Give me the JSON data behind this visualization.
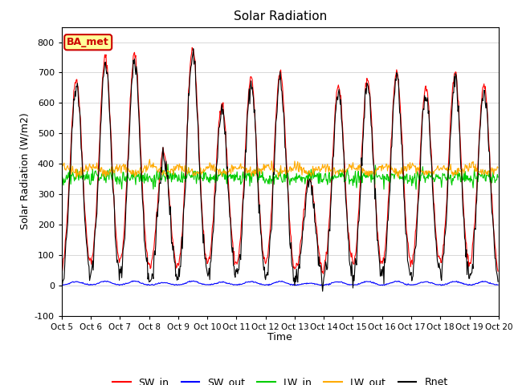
{
  "title": "Solar Radiation",
  "ylabel": "Solar Radiation (W/m2)",
  "xlabel": "Time",
  "ylim": [
    -100,
    850
  ],
  "yticks": [
    -100,
    0,
    100,
    200,
    300,
    400,
    500,
    600,
    700,
    800
  ],
  "n_days": 15,
  "dt_minutes": 30,
  "colors": {
    "SW_in": "#ff0000",
    "SW_out": "#0000ff",
    "LW_in": "#00cc00",
    "LW_out": "#ffaa00",
    "Rnet": "#000000"
  },
  "label_box": {
    "text": "BA_met",
    "facecolor": "#ffff99",
    "edgecolor": "#cc0000",
    "textcolor": "#cc0000"
  },
  "background_color": "#ffffff",
  "grid_color": "#d8d8d8",
  "sw_in_peaks": [
    680,
    750,
    760,
    440,
    780,
    600,
    680,
    700,
    360,
    660,
    680,
    700,
    650,
    700,
    660
  ],
  "lw_in_base": 340,
  "lw_out_base": 380,
  "figsize": [
    6.4,
    4.8
  ],
  "dpi": 100
}
